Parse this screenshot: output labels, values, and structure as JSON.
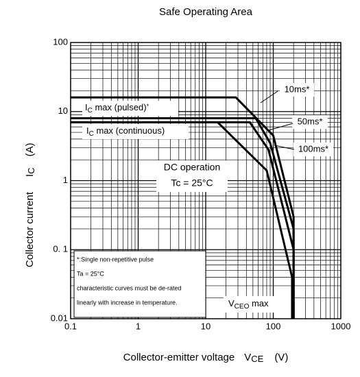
{
  "chart_data": {
    "type": "line",
    "title": "Safe Operating Area",
    "x_label": [
      "Collector-emitter voltage",
      "V",
      "CE",
      "(V)"
    ],
    "y_label": [
      "Collector current",
      "I",
      "C",
      "(A)"
    ],
    "log_x": true,
    "log_y": true,
    "grid": true,
    "xlim": [
      0.1,
      1000
    ],
    "ylim": [
      0.01,
      100
    ],
    "xticks": [
      0.1,
      1,
      10,
      100,
      1000
    ],
    "yticks": [
      0.01,
      {
        "value": 0.1,
        "label": "0. 1"
      },
      1,
      10,
      100
    ],
    "series": [
      {
        "name": "10ms*",
        "color": "#000000",
        "x": [
          0.1,
          28,
          100,
          200,
          200
        ],
        "values": [
          16,
          16,
          4.5,
          0.3,
          0.01
        ]
      },
      {
        "name": "50ms*",
        "color": "#000000",
        "x": [
          0.1,
          55,
          90,
          200,
          200
        ],
        "values": [
          8,
          8,
          3.5,
          0.2,
          0.01
        ]
      },
      {
        "name": "100ms*",
        "color": "#000000",
        "x": [
          0.1,
          45,
          85,
          200,
          200
        ],
        "values": [
          7,
          7,
          2.8,
          0.1,
          0.01
        ]
      },
      {
        "name": "DC operation",
        "color": "#000000",
        "x": [
          0.1,
          15,
          80,
          190,
          190
        ],
        "values": [
          7,
          7,
          1.4,
          0.04,
          0.01
        ]
      }
    ],
    "annotations": {
      "dc_condition": "Tc = 25°C",
      "ic_pulsed": [
        "I",
        "C",
        " max (pulsed)",
        "*"
      ],
      "ic_continuous": [
        "I",
        "C",
        " max (continuous)"
      ],
      "vceo": [
        "V",
        "CEO",
        " max"
      ],
      "notes": [
        "*:Single non-repetitive pulse",
        "Ta = 25°C",
        "characteristic curves must be de-rated",
        "linearly with increase in temperature."
      ]
    }
  }
}
